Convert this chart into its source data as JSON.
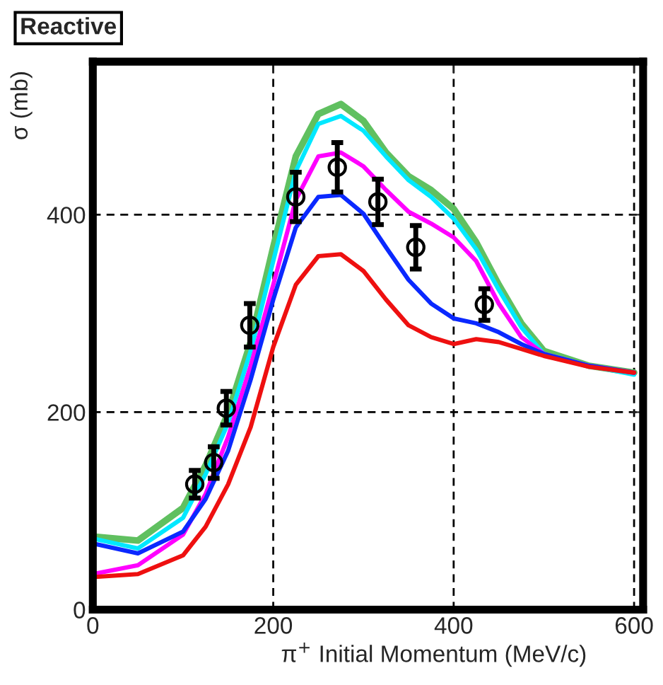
{
  "chart_data": {
    "type": "line",
    "title": "Reactive",
    "xlabel": "π$^{+}$ Initial Momentum (MeV/c)",
    "ylabel": "σ (mb)",
    "xlim": [
      0,
      610
    ],
    "ylim": [
      0,
      555
    ],
    "xticks": [
      0,
      200,
      400,
      600
    ],
    "yticks": [
      0,
      200,
      400
    ],
    "grid": true,
    "line_style": "solid",
    "marker": "none",
    "x": [
      0,
      50,
      100,
      125,
      150,
      175,
      200,
      225,
      250,
      275,
      300,
      325,
      350,
      375,
      400,
      425,
      450,
      475,
      500,
      550,
      600
    ],
    "series": [
      {
        "color": "#60c060",
        "values": [
          74,
          70,
          103,
          146,
          199,
          271,
          367,
          459,
          502,
          512,
          495,
          463,
          439,
          425,
          406,
          372,
          329,
          290,
          262,
          247,
          240
        ]
      },
      {
        "color": "#00e8ff",
        "values": [
          72,
          62,
          93,
          137,
          189,
          262,
          353,
          444,
          492,
          500,
          485,
          459,
          435,
          418,
          396,
          365,
          324,
          286,
          259,
          247,
          238
        ]
      },
      {
        "color": "#ff00ff",
        "values": [
          36,
          45,
          76,
          117,
          175,
          247,
          329,
          415,
          459,
          463,
          449,
          425,
          403,
          391,
          377,
          353,
          310,
          276,
          259,
          247,
          240
        ]
      },
      {
        "color": "#0a28ff",
        "values": [
          67,
          57,
          79,
          112,
          161,
          233,
          314,
          387,
          418,
          420,
          401,
          367,
          334,
          310,
          295,
          290,
          281,
          269,
          259,
          247,
          240
        ]
      },
      {
        "color": "#ee1010",
        "values": [
          33,
          36,
          55,
          84,
          127,
          185,
          266,
          329,
          358,
          360,
          343,
          314,
          288,
          276,
          269,
          274,
          271,
          264,
          257,
          246,
          240
        ]
      },
      {
        "type": "scatter",
        "marker": "circle",
        "color": "#000000",
        "x": [
          113,
          134,
          148,
          174,
          225,
          271,
          316,
          358,
          434
        ],
        "values": [
          127,
          149,
          204,
          288,
          418,
          448,
          413,
          367,
          309
        ],
        "errors": [
          14,
          16,
          17,
          22,
          25,
          25,
          23,
          22,
          16
        ]
      }
    ]
  }
}
